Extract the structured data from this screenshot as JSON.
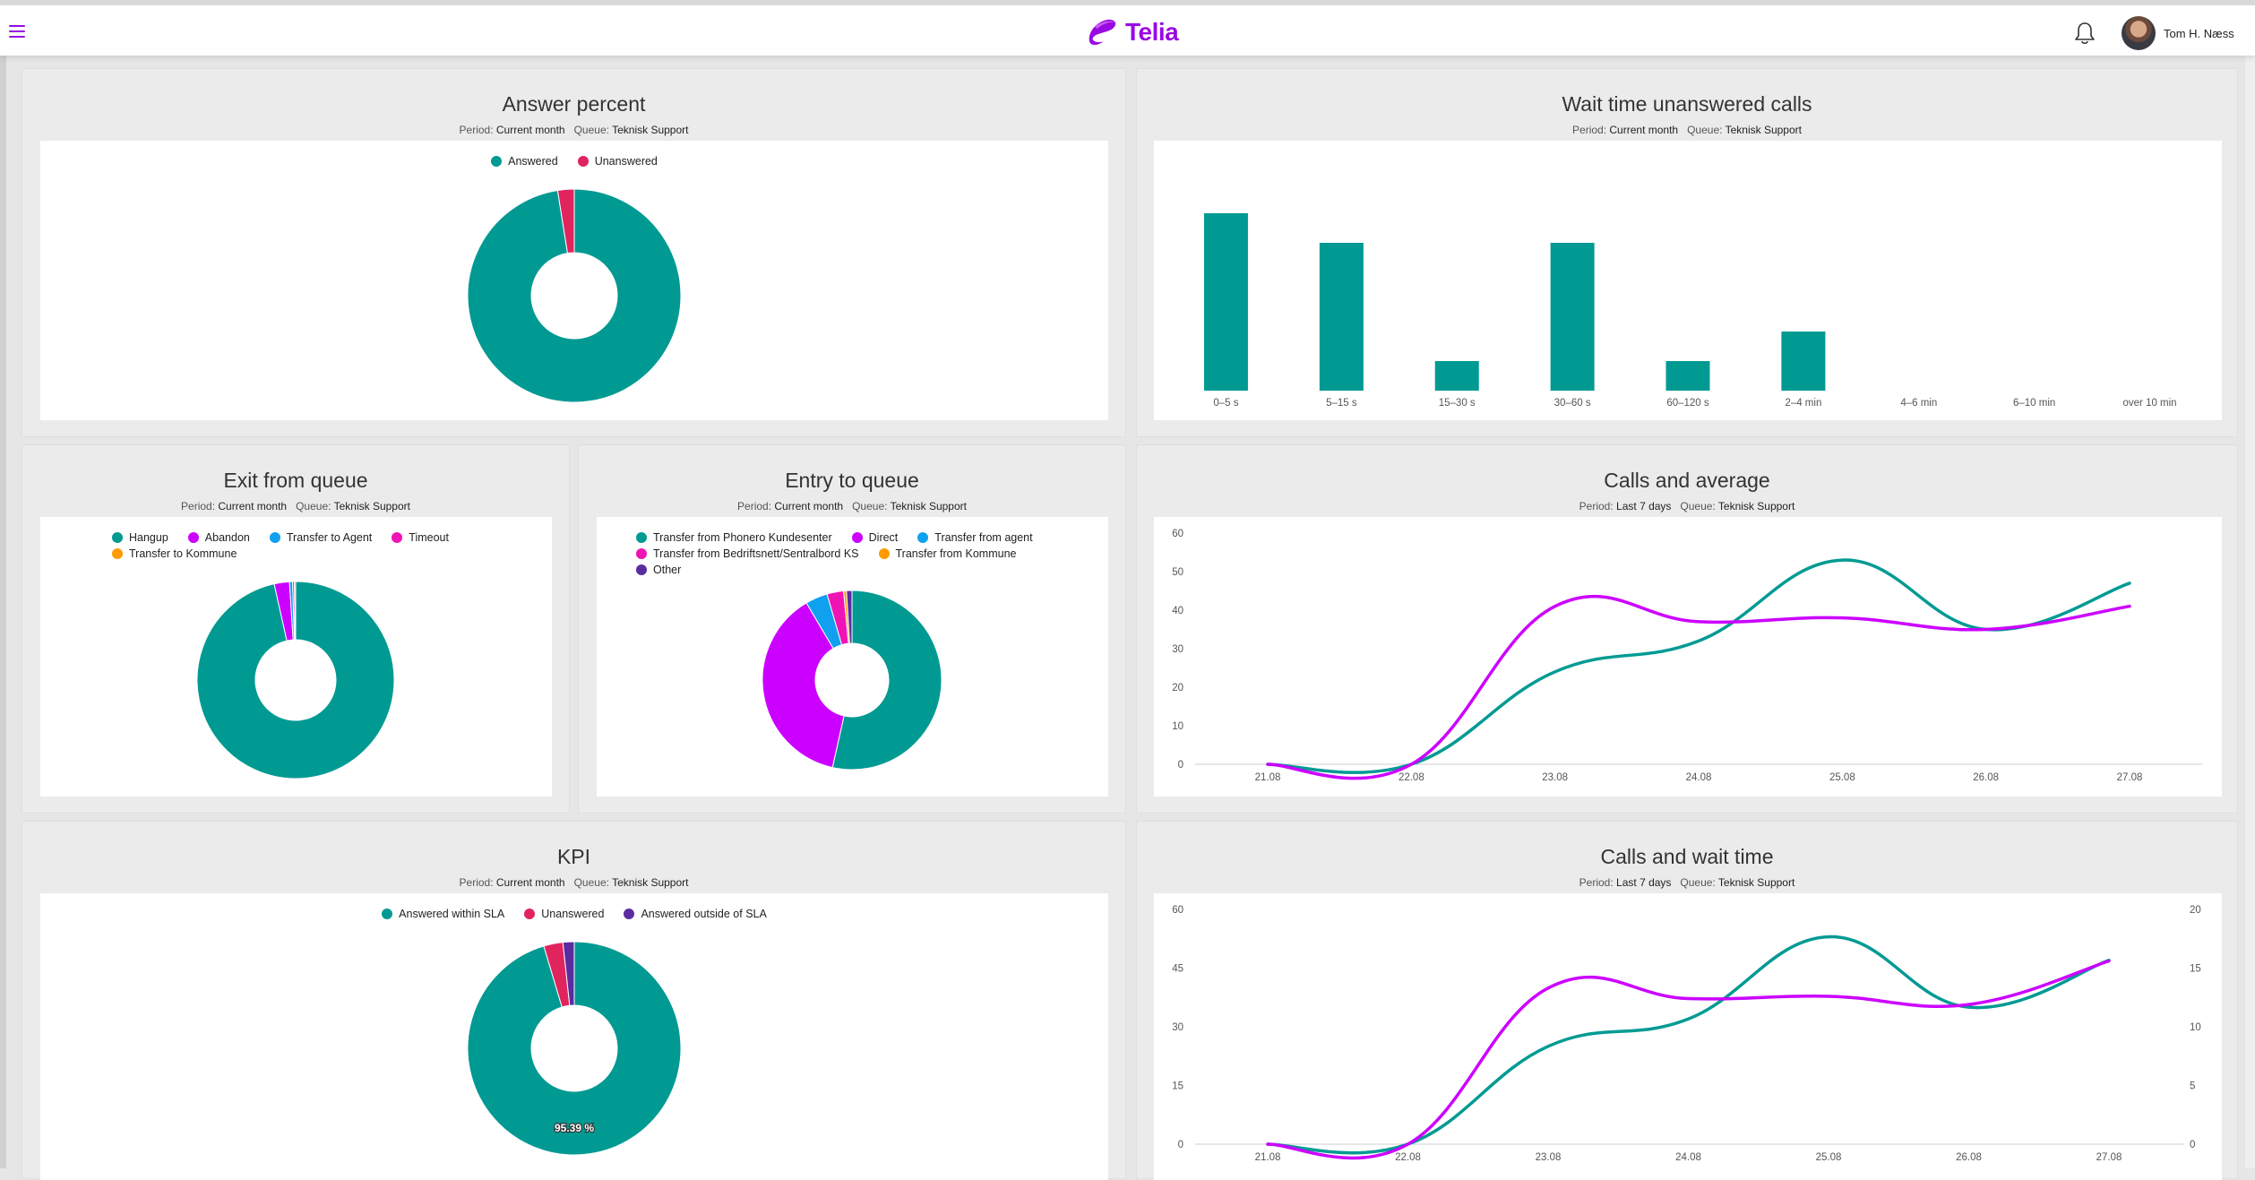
{
  "header": {
    "brand": "Telia",
    "username": "Tom H. Næss",
    "menu_icon": "hamburger-menu-icon",
    "notification_icon": "bell-icon"
  },
  "colors": {
    "brand": "#990ae3",
    "teal": "#009a93",
    "magenta": "#cc00ff",
    "crimson": "#e0245e",
    "blue": "#0fa0f0",
    "pink": "#f014b4",
    "orange": "#ff9b00",
    "indigo": "#5a2ca0"
  },
  "panels": {
    "answer_percent": {
      "title": "Answer percent",
      "period_label": "Period:",
      "period_value": "Current month",
      "queue_label": "Queue:",
      "queue_value": "Teknisk Support"
    },
    "wait_time": {
      "title": "Wait time unanswered calls",
      "period_label": "Period:",
      "period_value": "Current month",
      "queue_label": "Queue:",
      "queue_value": "Teknisk Support"
    },
    "exit_queue": {
      "title": "Exit from queue",
      "period_label": "Period:",
      "period_value": "Current month",
      "queue_label": "Queue:",
      "queue_value": "Teknisk Support"
    },
    "entry_queue": {
      "title": "Entry to queue",
      "period_label": "Period:",
      "period_value": "Current month",
      "queue_label": "Queue:",
      "queue_value": "Teknisk Support"
    },
    "calls_average": {
      "title": "Calls and average",
      "period_label": "Period:",
      "period_value": "Last 7 days",
      "queue_label": "Queue:",
      "queue_value": "Teknisk Support"
    },
    "kpi": {
      "title": "KPI",
      "period_label": "Period:",
      "period_value": "Current month",
      "queue_label": "Queue:",
      "queue_value": "Teknisk Support"
    },
    "calls_wait": {
      "title": "Calls and wait time",
      "period_label": "Period:",
      "period_value": "Last 7 days",
      "queue_label": "Queue:",
      "queue_value": "Teknisk Support"
    }
  },
  "chart_data": [
    {
      "id": "answer_percent",
      "type": "pie",
      "labels": [
        "Answered",
        "Unanswered"
      ],
      "values": [
        97.5,
        2.5
      ],
      "colors": [
        "#009a93",
        "#e0245e"
      ],
      "legend": "top"
    },
    {
      "id": "wait_time",
      "type": "bar",
      "categories": [
        "0–5 s",
        "5–15 s",
        "15–30 s",
        "30–60 s",
        "60–120 s",
        "2–4 min",
        "4–6 min",
        "6–10 min",
        "over 10 min"
      ],
      "values": [
        6,
        5,
        1,
        5,
        1,
        2,
        0,
        0,
        0
      ],
      "ylim": [
        0,
        6
      ],
      "color": "#009a93",
      "grid": false
    },
    {
      "id": "exit_queue",
      "type": "pie",
      "labels": [
        "Hangup",
        "Abandon",
        "Transfer to Agent",
        "Timeout",
        "Transfer to Kommune"
      ],
      "values": [
        96.5,
        2.5,
        0.5,
        0.3,
        0.2
      ],
      "colors": [
        "#009a93",
        "#cc00ff",
        "#0fa0f0",
        "#f014b4",
        "#ff9b00"
      ],
      "legend": "top"
    },
    {
      "id": "entry_queue",
      "type": "pie",
      "labels": [
        "Transfer from Phonero Kundesenter",
        "Direct",
        "Transfer from agent",
        "Transfer from Bedriftsnett/Sentralbord KS",
        "Transfer from Kommune",
        "Other"
      ],
      "values": [
        53.5,
        38,
        4,
        3,
        0.5,
        1
      ],
      "colors": [
        "#009a93",
        "#cc00ff",
        "#0fa0f0",
        "#f014b4",
        "#ff9b00",
        "#5a2ca0"
      ],
      "legend": "top"
    },
    {
      "id": "calls_average",
      "type": "line",
      "x": [
        "21.08",
        "22.08",
        "23.08",
        "24.08",
        "25.08",
        "26.08",
        "27.08"
      ],
      "yticks": [
        0,
        10,
        20,
        30,
        40,
        50,
        60
      ],
      "ylim": [
        0,
        60
      ],
      "series": [
        {
          "values": [
            0,
            0,
            24,
            32,
            53,
            35,
            47
          ],
          "color": "#009a93"
        },
        {
          "values": [
            0,
            0,
            41,
            37,
            38,
            35,
            41
          ],
          "color": "#cc00ff"
        }
      ],
      "grid": false
    },
    {
      "id": "kpi",
      "type": "pie",
      "labels": [
        "Answered within SLA",
        "Unanswered",
        "Answered outside of SLA"
      ],
      "values": [
        95.39,
        2.9,
        1.71
      ],
      "colors": [
        "#009a93",
        "#e0245e",
        "#5a2ca0"
      ],
      "data_label": "95.39 %",
      "legend": "top"
    },
    {
      "id": "calls_wait",
      "type": "line",
      "x": [
        "21.08",
        "22.08",
        "23.08",
        "24.08",
        "25.08",
        "26.08",
        "27.08"
      ],
      "yticks_left": [
        0,
        15,
        30,
        45,
        60
      ],
      "yticks_right": [
        0,
        5,
        10,
        15,
        20
      ],
      "ylim_left": [
        0,
        60
      ],
      "ylim_right": [
        0,
        20
      ],
      "series": [
        {
          "values": [
            0,
            0,
            25,
            32,
            53,
            35,
            47
          ],
          "color": "#009a93",
          "axis": "left"
        },
        {
          "values": [
            0,
            0,
            13.3,
            12.4,
            12.6,
            11.9,
            15.6
          ],
          "color": "#cc00ff",
          "axis": "right"
        }
      ],
      "grid": false
    }
  ]
}
